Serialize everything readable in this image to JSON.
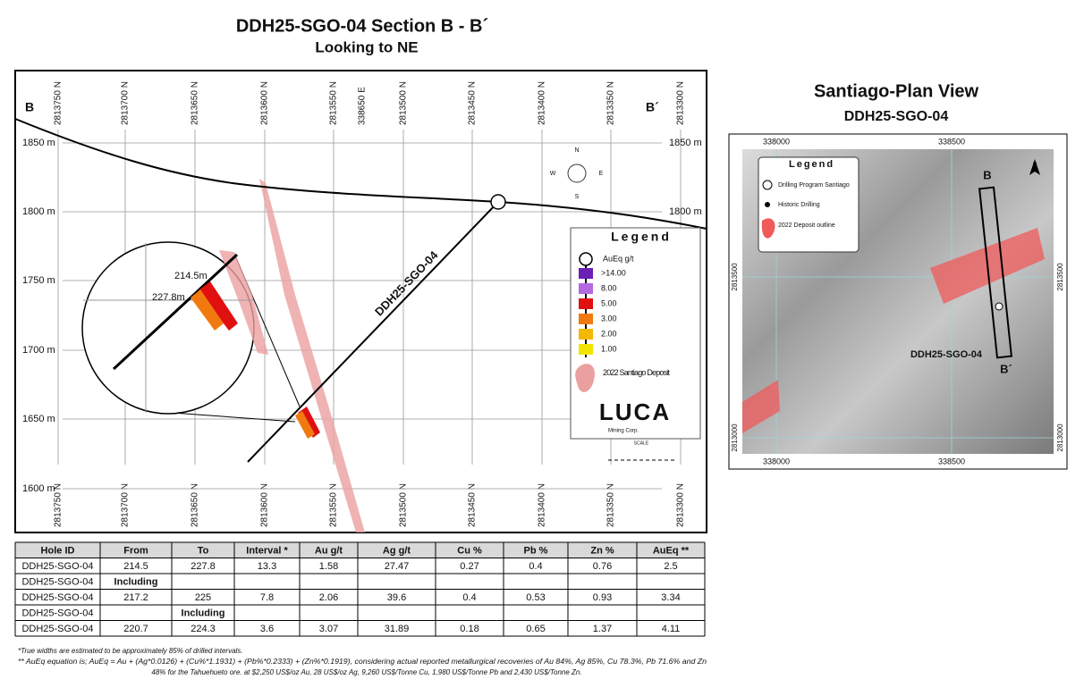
{
  "section": {
    "title": "DDH25-SGO-04 Section B - B´",
    "subtitle": "Looking to NE",
    "left_label": "B",
    "right_label": "B´",
    "northings": [
      "2813750 N",
      "2813700 N",
      "2813650 N",
      "2813600 N",
      "2813550 N",
      "2813500 N",
      "2813450 N",
      "2813400 N",
      "2813350 N",
      "2813300 N"
    ],
    "easting_label": "338650 E",
    "elevations_left": [
      "1850 m",
      "1800 m",
      "1750 m",
      "1700 m",
      "1650 m",
      "1600 m"
    ],
    "elevations_right": [
      "1850 m",
      "1800 m"
    ],
    "hole_label": "DDH25-SGO-04",
    "zoom_from": "214.5m",
    "zoom_to": "227.8m",
    "compass": [
      "N",
      "E",
      "S",
      "W"
    ],
    "legend": {
      "title": "Legend",
      "unit": "AuEq g/t",
      "grades": [
        {
          "label": ">14.00",
          "color": "#6a1fb5"
        },
        {
          "label": "8.00",
          "color": "#b36ae0"
        },
        {
          "label": "5.00",
          "color": "#e01010"
        },
        {
          "label": "3.00",
          "color": "#f07a10"
        },
        {
          "label": "2.00",
          "color": "#f5b800"
        },
        {
          "label": "1.00",
          "color": "#f2e600"
        }
      ],
      "deposit": "2022 Santiago Deposit",
      "logo": "LUCA",
      "logo_sub": "Mining Corp.",
      "scale": "SCALE"
    }
  },
  "plan": {
    "title": "Santiago-Plan View",
    "subtitle": "DDH25-SGO-04",
    "eastings": [
      "338000",
      "338500"
    ],
    "northings": [
      "2813500",
      "2813000"
    ],
    "legend": {
      "title": "Legend",
      "items": [
        "Drilling Program Santiago",
        "Historic Drilling",
        "2022 Deposit outline"
      ]
    },
    "b": "B",
    "b2": "B´",
    "hole_label": "DDH25-SGO-04",
    "north": "N"
  },
  "table": {
    "header": [
      "Hole ID",
      "From",
      "To",
      "Interval *",
      "Au g/t",
      "Ag g/t",
      "Cu %",
      "Pb %",
      "Zn %",
      "AuEq **"
    ],
    "rows": [
      [
        "DDH25-SGO-04",
        "214.5",
        "227.8",
        "13.3",
        "1.58",
        "27.47",
        "0.27",
        "0.4",
        "0.76",
        "2.5"
      ],
      [
        "DDH25-SGO-04",
        "Including",
        null,
        null,
        null,
        null,
        null,
        null,
        null,
        null
      ],
      [
        "DDH25-SGO-04",
        "217.2",
        "225",
        "7.8",
        "2.06",
        "39.6",
        "0.4",
        "0.53",
        "0.93",
        "3.34"
      ],
      [
        "DDH25-SGO-04",
        null,
        "Including",
        null,
        null,
        null,
        null,
        null,
        null,
        null
      ],
      [
        "DDH25-SGO-04",
        "220.7",
        "224.3",
        "3.6",
        "3.07",
        "31.89",
        "0.18",
        "0.65",
        "1.37",
        "4.11"
      ]
    ]
  },
  "footnotes": [
    "*True widths are estimated to be approximately 85% of drilled intervals.",
    "** AuEq equation is; AuEq = Au + (Ag*0.0126) + (Cu%*1.1931) + (Pb%*0.2333) + (Zn%*0.1919), considering actual reported metallurgical recoveries of Au 84%, Ag 85%, Cu 78.3%, Pb 71.6% and Zn",
    "48% for the Tahuehueto ore. at $2,250 US$/oz Au, 28 US$/oz Ag, 9,260 US$/Tonne Cu, 1,980 US$/Tonne Pb and 2,430 US$/Tonne Zn."
  ]
}
